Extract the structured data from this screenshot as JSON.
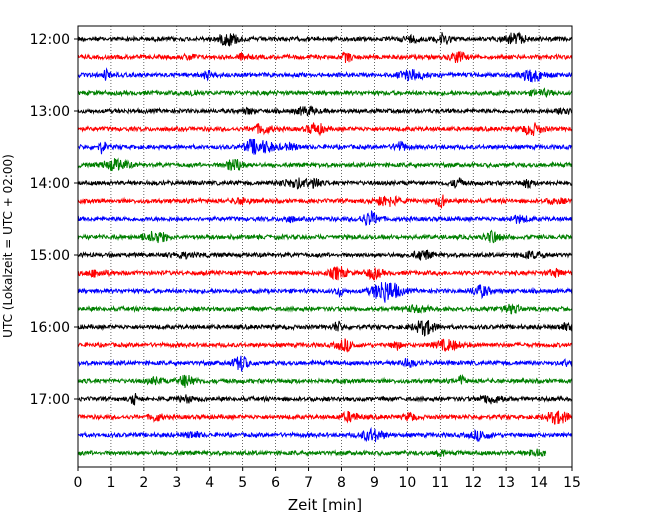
{
  "chart_data": {
    "type": "line",
    "title": "",
    "xlabel": "Zeit  [min]",
    "ylabel": "UTC (Lokalzeit = UTC + 02:00)",
    "xlim": [
      0,
      15
    ],
    "x_ticks": [
      "0",
      "1",
      "2",
      "3",
      "4",
      "5",
      "6",
      "7",
      "8",
      "9",
      "10",
      "11",
      "12",
      "13",
      "14",
      "15"
    ],
    "y_tick_labels": [
      "12:00",
      "13:00",
      "14:00",
      "15:00",
      "16:00",
      "17:00"
    ],
    "grid": "vertical dotted",
    "trace_colors": [
      "#000000",
      "#ff0000",
      "#0000ff",
      "#008000"
    ],
    "series": [
      {
        "start": "12:00",
        "color": "#000000",
        "xmax": 15
      },
      {
        "start": "12:15",
        "color": "#ff0000",
        "xmax": 15
      },
      {
        "start": "12:30",
        "color": "#0000ff",
        "xmax": 15
      },
      {
        "start": "12:45",
        "color": "#008000",
        "xmax": 15
      },
      {
        "start": "13:00",
        "color": "#000000",
        "xmax": 15
      },
      {
        "start": "13:15",
        "color": "#ff0000",
        "xmax": 15
      },
      {
        "start": "13:30",
        "color": "#0000ff",
        "xmax": 15
      },
      {
        "start": "13:45",
        "color": "#008000",
        "xmax": 15
      },
      {
        "start": "14:00",
        "color": "#000000",
        "xmax": 15
      },
      {
        "start": "14:15",
        "color": "#ff0000",
        "xmax": 15
      },
      {
        "start": "14:30",
        "color": "#0000ff",
        "xmax": 15
      },
      {
        "start": "14:45",
        "color": "#008000",
        "xmax": 15
      },
      {
        "start": "15:00",
        "color": "#000000",
        "xmax": 15
      },
      {
        "start": "15:15",
        "color": "#ff0000",
        "xmax": 15
      },
      {
        "start": "15:30",
        "color": "#0000ff",
        "xmax": 15
      },
      {
        "start": "15:45",
        "color": "#008000",
        "xmax": 15
      },
      {
        "start": "16:00",
        "color": "#000000",
        "xmax": 15
      },
      {
        "start": "16:15",
        "color": "#ff0000",
        "xmax": 15
      },
      {
        "start": "16:30",
        "color": "#0000ff",
        "xmax": 15
      },
      {
        "start": "16:45",
        "color": "#008000",
        "xmax": 15
      },
      {
        "start": "17:00",
        "color": "#000000",
        "xmax": 15
      },
      {
        "start": "17:15",
        "color": "#ff0000",
        "xmax": 15
      },
      {
        "start": "17:30",
        "color": "#0000ff",
        "xmax": 15
      },
      {
        "start": "17:45",
        "color": "#008000",
        "xmax": 14.2
      }
    ]
  }
}
